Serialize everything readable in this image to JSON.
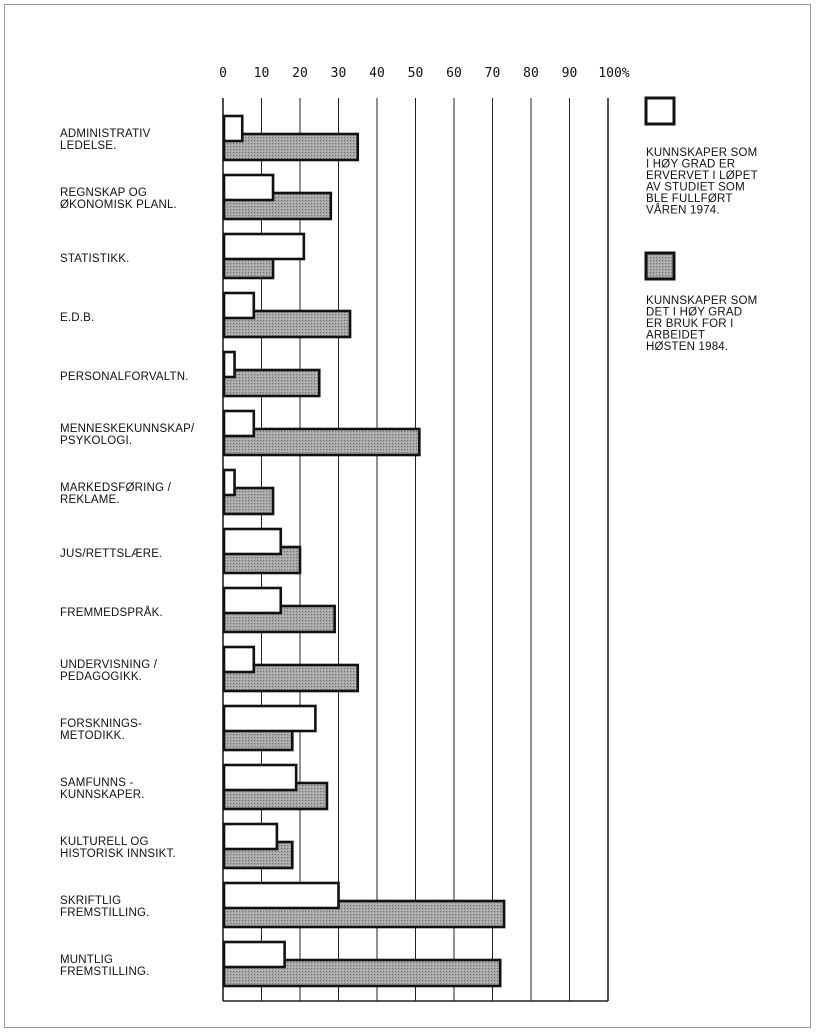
{
  "chart_data": {
    "type": "bar",
    "orientation": "horizontal",
    "x_ticks": [
      "0",
      "10",
      "20",
      "30",
      "40",
      "50",
      "60",
      "70",
      "80",
      "90",
      "100%"
    ],
    "xlim": [
      0,
      100
    ],
    "grid": true,
    "legend_position": "right",
    "categories": [
      [
        "ADMINISTRATIV",
        "LEDELSE."
      ],
      [
        "REGNSKAP OG",
        "ØKONOMISK PLANL."
      ],
      [
        "STATISTIKK."
      ],
      [
        "E.D.B."
      ],
      [
        "PERSONALFORVALTN."
      ],
      [
        "MENNESKEKUNNSKAP/",
        "PSYKOLOGI."
      ],
      [
        "MARKEDSFØRING /",
        "REKLAME."
      ],
      [
        "JUS/RETTSLÆRE."
      ],
      [
        "FREMMEDSPRÅK."
      ],
      [
        "UNDERVISNING /",
        "PEDAGOGIKK."
      ],
      [
        "FORSKNINGS-",
        "METODIKK."
      ],
      [
        "SAMFUNNS -",
        "KUNNSKAPER."
      ],
      [
        "KULTURELL OG",
        "HISTORISK INNSIKT."
      ],
      [
        "SKRIFTLIG",
        "FREMSTILLING."
      ],
      [
        "MUNTLIG",
        "FREMSTILLING."
      ]
    ],
    "series": [
      {
        "name": [
          "KUNNSKAPER SOM",
          "I HØY GRAD ER",
          "ERVERVET I LØPET",
          "AV STUDIET SOM",
          "BLE FULLFØRT",
          "VÅREN 1974."
        ],
        "fill": "#ffffff",
        "values": [
          5,
          13,
          21,
          8,
          3,
          8,
          3,
          15,
          15,
          8,
          24,
          19,
          14,
          30,
          16
        ]
      },
      {
        "name": [
          "KUNNSKAPER SOM",
          "DET I HØY GRAD",
          "ER BRUK FOR I",
          "ARBEIDET",
          "HØSTEN 1984."
        ],
        "fill": "#9a9a9a",
        "values": [
          35,
          28,
          13,
          33,
          25,
          51,
          13,
          20,
          29,
          35,
          18,
          27,
          18,
          73,
          72
        ]
      }
    ]
  }
}
